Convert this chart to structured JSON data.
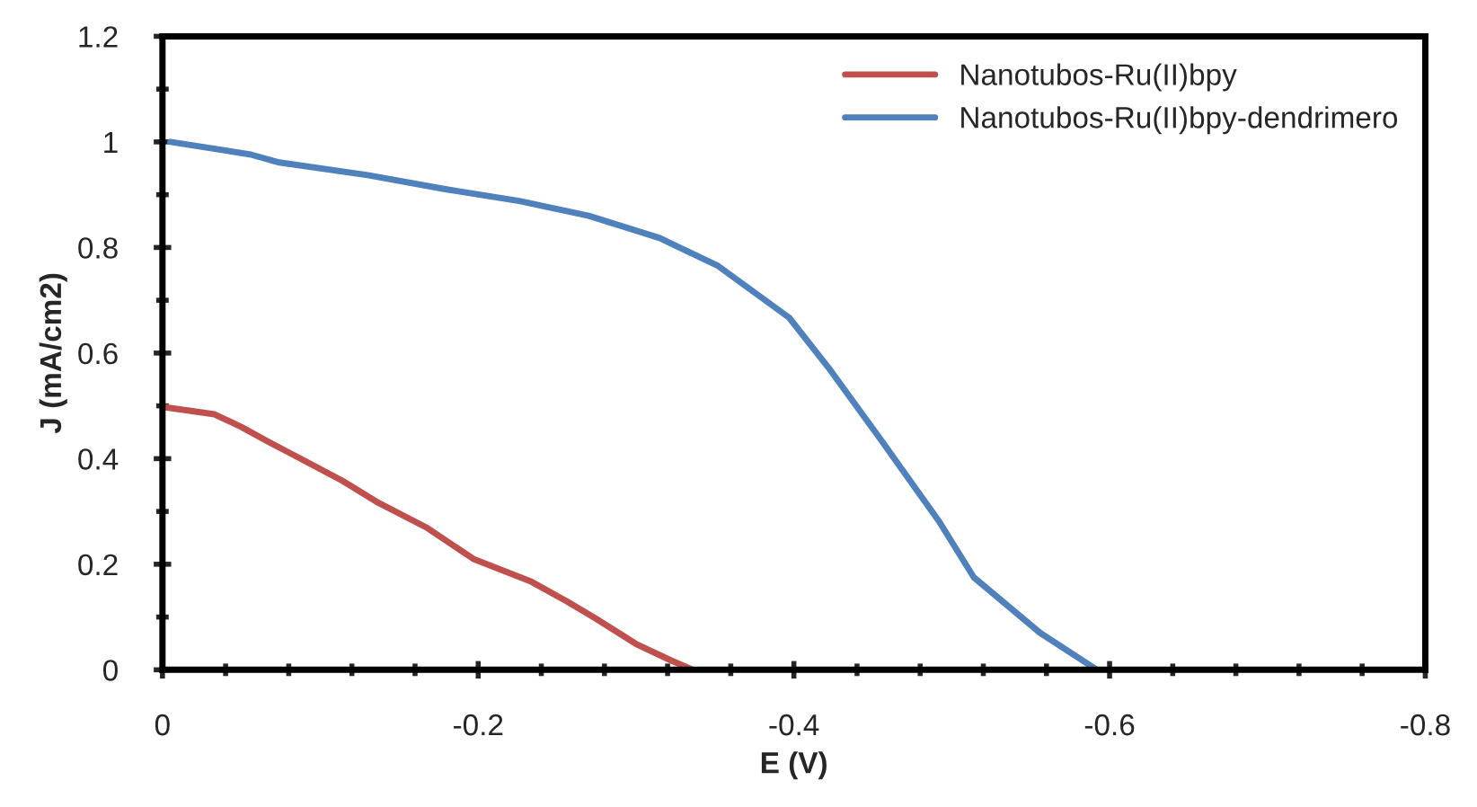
{
  "chart_data": {
    "type": "line",
    "xlabel": "E (V)",
    "ylabel": "J (mA/cm2)",
    "xlim": [
      0,
      -0.8
    ],
    "xticks": [
      0,
      -0.2,
      -0.4,
      -0.6,
      -0.8
    ],
    "ylim": [
      0,
      1.2
    ],
    "yticks": [
      0,
      0.2,
      0.4,
      0.6,
      0.8,
      1,
      1.2
    ],
    "grid": false,
    "legend": "top right",
    "marker": "none",
    "line_style": "solid",
    "series": [
      {
        "name": "Nanotubos-Ru(II)bpy",
        "color": "#c0504d",
        "x": [
          0,
          -0.033,
          -0.05,
          -0.067,
          -0.083,
          -0.114,
          -0.137,
          -0.167,
          -0.197,
          -0.233,
          -0.256,
          -0.274,
          -0.3,
          -0.322,
          -0.336
        ],
        "values": [
          0.498,
          0.484,
          0.46,
          0.432,
          0.407,
          0.358,
          0.316,
          0.27,
          0.21,
          0.168,
          0.13,
          0.098,
          0.049,
          0.018,
          0
        ]
      },
      {
        "name": "Nanotubos-Ru(II)bpy-dendrimero",
        "color": "#4f81bd",
        "x": [
          -0.005,
          -0.056,
          -0.074,
          -0.13,
          -0.18,
          -0.226,
          -0.27,
          -0.315,
          -0.352,
          -0.397,
          -0.422,
          -0.456,
          -0.492,
          -0.514,
          -0.556,
          -0.592
        ],
        "values": [
          1.0,
          0.976,
          0.961,
          0.937,
          0.91,
          0.888,
          0.86,
          0.818,
          0.765,
          0.667,
          0.572,
          0.432,
          0.281,
          0.175,
          0.07,
          0
        ]
      }
    ]
  }
}
